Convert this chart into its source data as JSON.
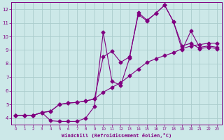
{
  "bg_color": "#cce8e8",
  "line_color": "#800080",
  "grid_color": "#aacccc",
  "xlabel": "Windchill (Refroidissement éolien,°C)",
  "xlabel_color": "#800080",
  "xtick_color": "#800080",
  "ytick_color": "#800080",
  "xlim": [
    -0.5,
    23.5
  ],
  "ylim": [
    3.5,
    12.5
  ],
  "xticks": [
    0,
    1,
    2,
    3,
    4,
    5,
    6,
    7,
    8,
    9,
    10,
    11,
    12,
    13,
    14,
    15,
    16,
    17,
    18,
    19,
    20,
    21,
    22,
    23
  ],
  "yticks": [
    4,
    5,
    6,
    7,
    8,
    9,
    10,
    11,
    12
  ],
  "curve1_x": [
    0,
    1,
    2,
    3,
    4,
    5,
    6,
    7,
    8,
    9,
    10,
    11,
    12,
    13,
    14,
    15,
    16,
    17,
    18,
    19,
    20,
    21,
    22,
    23
  ],
  "curve1_y": [
    4.2,
    4.2,
    4.2,
    4.4,
    4.5,
    5.0,
    5.1,
    5.15,
    5.25,
    5.4,
    5.9,
    6.25,
    6.6,
    7.1,
    7.6,
    8.1,
    8.35,
    8.6,
    8.8,
    9.1,
    9.3,
    9.4,
    9.5,
    9.5
  ],
  "curve2_x": [
    0,
    1,
    2,
    3,
    4,
    5,
    6,
    7,
    8,
    9,
    10,
    11,
    12,
    13,
    14,
    15,
    16,
    17,
    18,
    19,
    20,
    21,
    22,
    23
  ],
  "curve2_y": [
    4.2,
    4.2,
    4.2,
    4.4,
    4.5,
    5.0,
    5.1,
    5.15,
    5.25,
    5.4,
    8.5,
    8.9,
    8.1,
    8.5,
    11.6,
    11.15,
    11.7,
    12.3,
    11.1,
    9.0,
    10.4,
    9.2,
    9.3,
    9.2
  ],
  "curve3_x": [
    0,
    1,
    2,
    3,
    4,
    5,
    6,
    7,
    8,
    9,
    10,
    11,
    12,
    13,
    14,
    15,
    16,
    17,
    18,
    19,
    20,
    21,
    22,
    23
  ],
  "curve3_y": [
    4.2,
    4.2,
    4.2,
    4.4,
    3.8,
    3.75,
    3.75,
    3.75,
    4.0,
    4.85,
    10.3,
    6.7,
    6.4,
    8.4,
    11.75,
    11.2,
    11.7,
    12.3,
    11.1,
    9.3,
    9.5,
    9.1,
    9.2,
    9.1
  ],
  "marker": "D",
  "markersize": 2.5,
  "linewidth": 0.8
}
